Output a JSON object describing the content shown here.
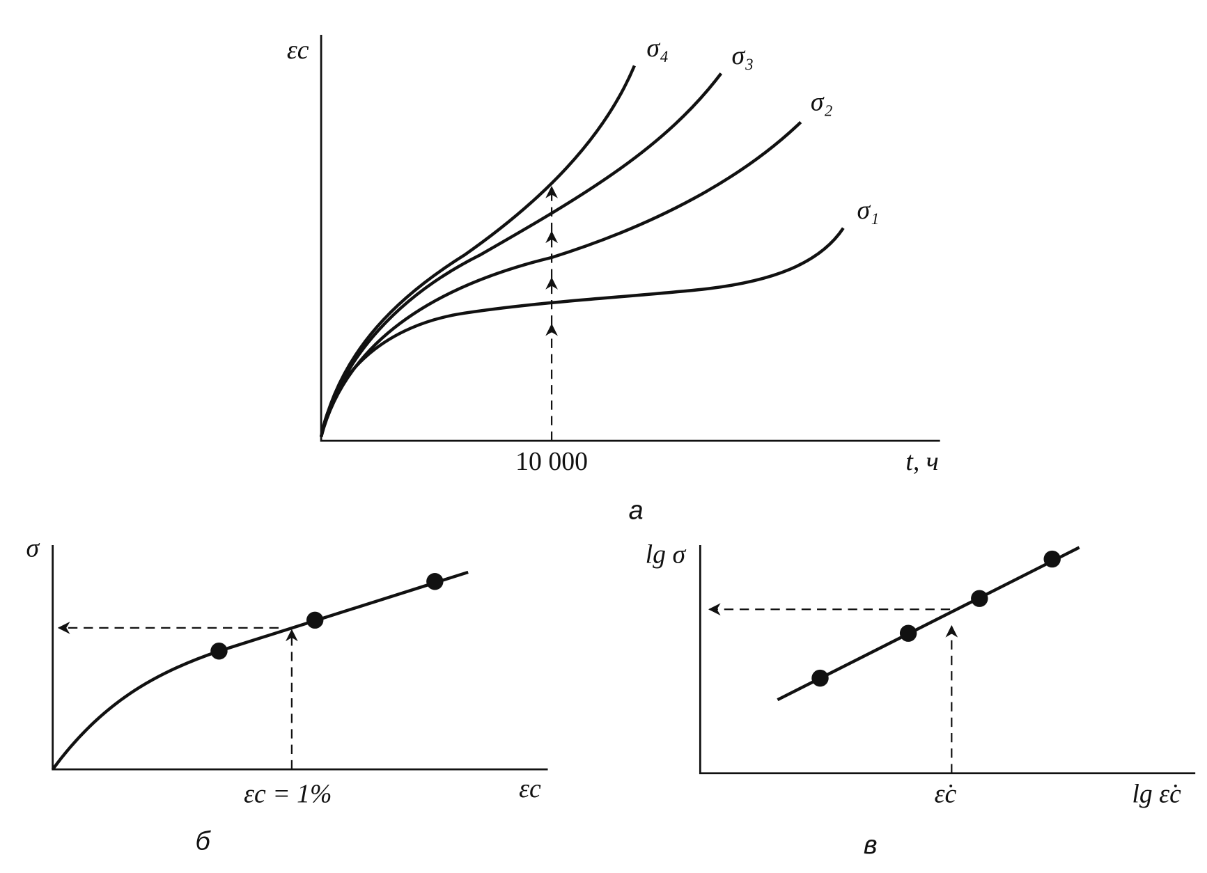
{
  "panel_a": {
    "y_label": "εc",
    "x_label": "t, ч",
    "tick": "10 000",
    "curves": [
      "σ₁",
      "σ₂",
      "σ₃",
      "σ₄"
    ],
    "caption": "а"
  },
  "panel_b": {
    "y_label": "σ",
    "x_label": "εc",
    "tick": "εc = 1%",
    "caption": "б"
  },
  "panel_c": {
    "y_label": "lg σ",
    "x_label": "lg ε̇c",
    "tick": "ε̇c",
    "caption": "в"
  }
}
